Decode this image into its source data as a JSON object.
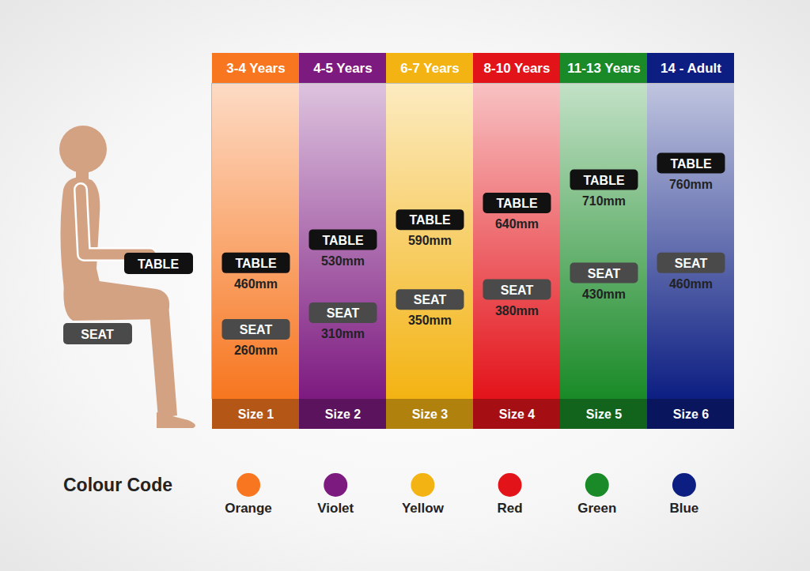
{
  "chart_data": {
    "type": "dot",
    "categories": [
      "3-4 Years",
      "4-5 Years",
      "6-7 Years",
      "8-10 Years",
      "11-13 Years",
      "14 - Adult"
    ],
    "sizes": [
      "Size 1",
      "Size 2",
      "Size 3",
      "Size 4",
      "Size 5",
      "Size 6"
    ],
    "colors": [
      "#f7761f",
      "#7d1a80",
      "#f3b312",
      "#e3131a",
      "#198a27",
      "#0c1e82"
    ],
    "series": [
      {
        "name": "TABLE",
        "color": "#111111",
        "values": [
          460,
          530,
          590,
          640,
          710,
          760
        ],
        "value_labels": [
          "460mm",
          "530mm",
          "590mm",
          "640mm",
          "710mm",
          "760mm"
        ]
      },
      {
        "name": "SEAT",
        "color": "#4a4a4a",
        "values": [
          260,
          310,
          350,
          380,
          430,
          460
        ],
        "value_labels": [
          "260mm",
          "310mm",
          "350mm",
          "380mm",
          "430mm",
          "460mm"
        ]
      }
    ],
    "colour_code": {
      "title": "Colour Code",
      "names": [
        "Orange",
        "Violet",
        "Yellow",
        "Red",
        "Green",
        "Blue"
      ]
    },
    "ylim": [
      50,
      1000
    ],
    "yticks": [],
    "tick_labels": "x",
    "data_labels": true
  }
}
